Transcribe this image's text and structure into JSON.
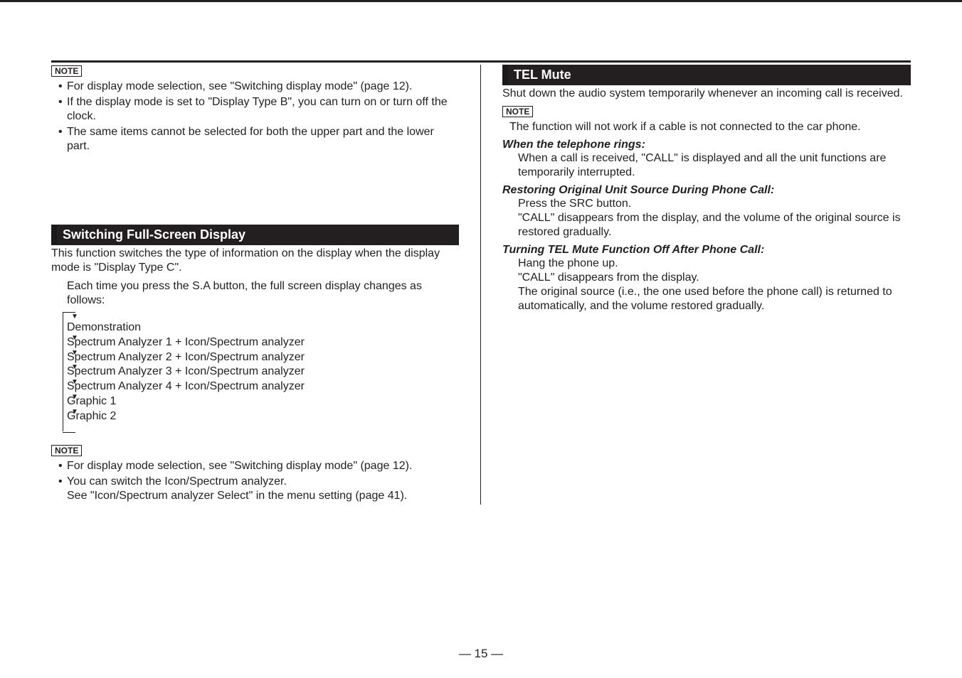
{
  "page_number": "— 15 —",
  "note_label": "NOTE",
  "left": {
    "top_notes": [
      "For display mode selection, see \"Switching display mode\" (page 12).",
      "If the display mode is set to \"Display Type B\", you can turn on or turn off the clock.",
      "The same items cannot be selected for both the upper part and the lower part."
    ],
    "section1": {
      "title": "Switching Full-Screen Display",
      "intro": "This function switches the type of information on the display when the display mode is \"Display Type C\".",
      "body": "Each time you press the S.A button, the full screen display changes as follows:",
      "flow": [
        "Demonstration",
        "Spectrum Analyzer 1 + Icon/Spectrum analyzer",
        "Spectrum Analyzer 2 + Icon/Spectrum analyzer",
        "Spectrum Analyzer 3 + Icon/Spectrum analyzer",
        "Spectrum Analyzer 4 + Icon/Spectrum analyzer",
        "Graphic 1",
        "Graphic 2"
      ]
    },
    "bottom_notes": [
      "For display mode selection, see \"Switching display mode\" (page 12).",
      "You can switch the Icon/Spectrum analyzer.\nSee \"Icon/Spectrum analyzer Select\" in the menu setting (page 41)."
    ]
  },
  "right": {
    "section1": {
      "title": "TEL Mute",
      "intro": "Shut down the audio system temporarily whenever an incoming call is received.",
      "note": "The function will not work if a cable is not connected to the car phone.",
      "sub1_title": "When the telephone rings:",
      "sub1_body": "When a call is received, \"CALL\" is displayed and all the unit functions are temporarily interrupted.",
      "sub2_title": "Restoring Original Unit Source During Phone Call:",
      "sub2_body": "Press the SRC button.\n\"CALL\" disappears from the display, and the volume of the original source is restored gradually.",
      "sub3_title": "Turning TEL Mute Function Off After Phone Call:",
      "sub3_body": "Hang the phone up.\n\"CALL\" disappears from the display.\nThe original source (i.e., the one used before the phone call) is returned to automatically, and the volume restored gradually."
    }
  }
}
